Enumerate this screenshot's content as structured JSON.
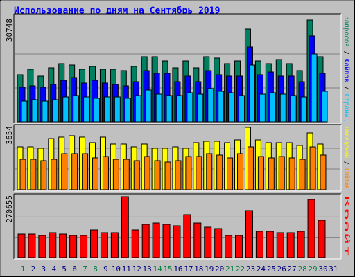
{
  "chart_data": [
    {
      "type": "bar",
      "title": "Использование по дням на Сентябрь 2019",
      "ylim": [
        0,
        30748
      ],
      "yticks": [
        30748
      ],
      "grid": true,
      "series": [
        {
          "name": "Запросов",
          "color": "#008060",
          "values": [
            14225,
            15897,
            13807,
            16317,
            17572,
            17154,
            15897,
            16736,
            15897,
            15897,
            15480,
            16736,
            19664,
            19664,
            18409,
            16317,
            18409,
            16317,
            19664,
            19246,
            17572,
            18409,
            28032,
            18409,
            17572,
            18827,
            17572,
            15480,
            30748,
            19664,
            0
          ]
        },
        {
          "name": "Файлов",
          "color": "#0000ff",
          "values": [
            10460,
            10878,
            10460,
            11297,
            12552,
            13389,
            11715,
            12552,
            11715,
            11297,
            10878,
            12134,
            15481,
            14644,
            14644,
            12134,
            13807,
            12134,
            15481,
            14226,
            13807,
            13807,
            22594,
            14226,
            15062,
            13807,
            13807,
            12134,
            25941,
            14644,
            0
          ]
        },
        {
          "name": "Страниц",
          "color": "#00c0ff",
          "values": [
            6276,
            6694,
            6276,
            6694,
            7531,
            7950,
            7531,
            7113,
            7531,
            7531,
            7113,
            7950,
            9623,
            8368,
            7950,
            7950,
            8786,
            8368,
            10042,
            9205,
            8786,
            7950,
            17154,
            8368,
            8786,
            8368,
            7950,
            7531,
            20502,
            9205,
            0
          ]
        }
      ]
    },
    {
      "type": "bar",
      "ylim": [
        0,
        3654
      ],
      "yticks": [
        3654
      ],
      "grid": true,
      "series": [
        {
          "name": "Посещений",
          "color": "#ffff00",
          "values": [
            2517,
            2517,
            2436,
            3004,
            3086,
            3167,
            3086,
            2761,
            3086,
            2680,
            2680,
            2517,
            2680,
            2436,
            2436,
            2517,
            2436,
            2761,
            2842,
            2842,
            2761,
            2923,
            3654,
            2923,
            2761,
            2761,
            2761,
            2598,
            3329,
            2680,
            0
          ]
        },
        {
          "name": "Сайтов",
          "color": "#ff8000",
          "values": [
            1786,
            1786,
            1705,
            1786,
            2111,
            2111,
            2111,
            1868,
            1949,
            1786,
            1786,
            1705,
            1949,
            1705,
            1624,
            1705,
            1949,
            1949,
            2111,
            2030,
            1868,
            2111,
            2517,
            1949,
            1868,
            1949,
            1868,
            1786,
            2517,
            2030,
            0
          ]
        }
      ]
    },
    {
      "type": "bar",
      "ylim": [
        0,
        270655
      ],
      "yticks": [
        270655
      ],
      "grid": true,
      "categories": [
        "1",
        "2",
        "3",
        "4",
        "5",
        "6",
        "7",
        "8",
        "9",
        "10",
        "11",
        "12",
        "13",
        "14",
        "15",
        "16",
        "17",
        "18",
        "19",
        "20",
        "21",
        "22",
        "23",
        "24",
        "25",
        "26",
        "27",
        "28",
        "29",
        "30",
        "31"
      ],
      "category_colors": [
        "#008040",
        "#000080",
        "#000080",
        "#000080",
        "#000080",
        "#000080",
        "#008040",
        "#008040",
        "#000080",
        "#000080",
        "#000080",
        "#000080",
        "#000080",
        "#008040",
        "#008040",
        "#000080",
        "#000080",
        "#000080",
        "#000080",
        "#000080",
        "#008040",
        "#008040",
        "#000080",
        "#000080",
        "#000080",
        "#000080",
        "#000080",
        "#008040",
        "#008040",
        "#000080",
        "#000080"
      ],
      "series": [
        {
          "name": "Кбайт",
          "color": "#ff0000",
          "values": [
            104570,
            104570,
            98419,
            110722,
            104570,
            98419,
            98419,
            123024,
            110722,
            110722,
            270655,
            123024,
            147629,
            153780,
            147629,
            141478,
            190687,
            153780,
            135326,
            129175,
            98419,
            98419,
            209141,
            116873,
            116873,
            110722,
            110722,
            116873,
            258350,
            166082,
            0
          ]
        }
      ]
    }
  ]
}
